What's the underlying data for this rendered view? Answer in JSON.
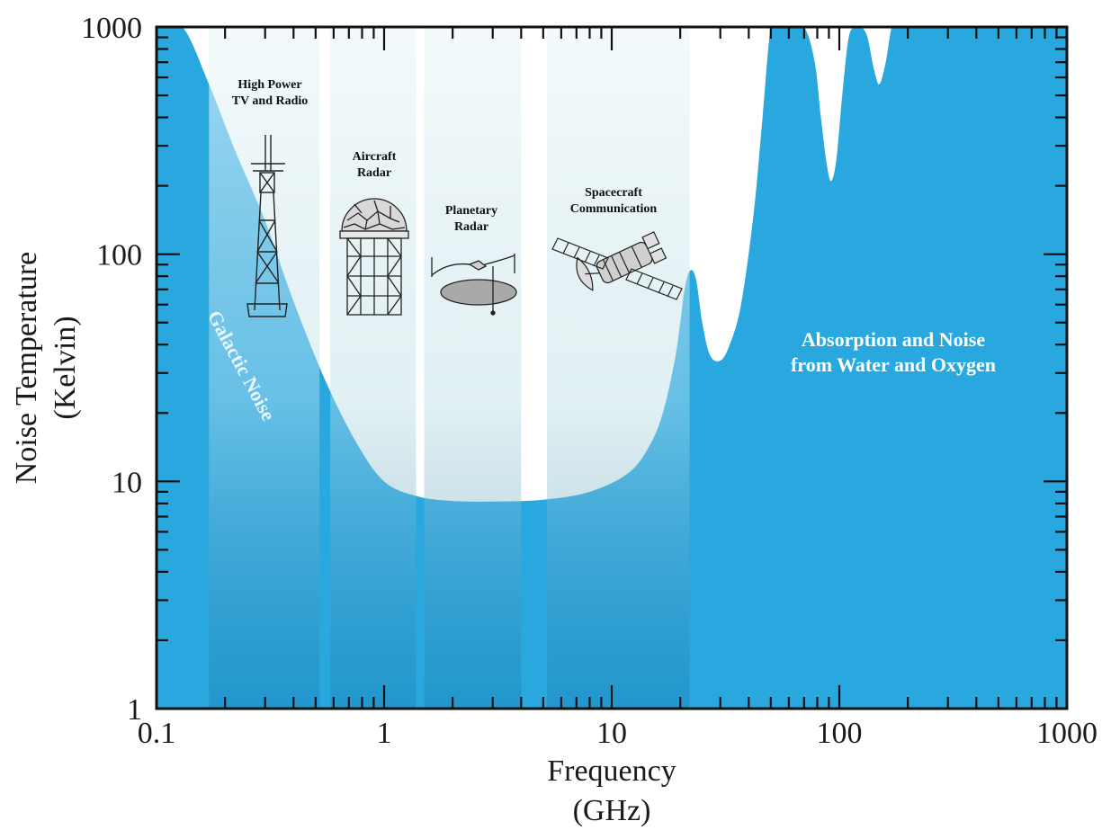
{
  "chart_data": {
    "type": "area",
    "title": "",
    "xlabel_line1": "Frequency",
    "xlabel_line2": "(GHz)",
    "ylabel_line1": "Noise Temperature",
    "ylabel_line2": "(Kelvin)",
    "x_scale": "log",
    "y_scale": "log",
    "xlim": [
      0.1,
      1000
    ],
    "ylim": [
      1,
      1000
    ],
    "x_ticks": [
      {
        "value": 0.1,
        "label": "0.1"
      },
      {
        "value": 1,
        "label": "1"
      },
      {
        "value": 10,
        "label": "10"
      },
      {
        "value": 100,
        "label": "100"
      },
      {
        "value": 1000,
        "label": "1000"
      }
    ],
    "y_ticks": [
      {
        "value": 1,
        "label": "1"
      },
      {
        "value": 10,
        "label": "10"
      },
      {
        "value": 100,
        "label": "100"
      },
      {
        "value": 1000,
        "label": "1000"
      }
    ],
    "noise_curve": {
      "color": "#29a8e0",
      "x": [
        0.1,
        0.13,
        0.17,
        0.22,
        0.3,
        0.4,
        0.55,
        0.75,
        1.0,
        1.4,
        2.0,
        3.0,
        5.0,
        8.0,
        12.0,
        15.0,
        17.0,
        19.0,
        20.0,
        21.0,
        22.2,
        23.5,
        25.0,
        27.0,
        30.0,
        33.0,
        37.0,
        42.0,
        46.0,
        50.0,
        54.0,
        60.0,
        70.0,
        78.0,
        83.0,
        88.0,
        92.0,
        97.0,
        103.0,
        110.0,
        118.0,
        125.0,
        133.0,
        142.0,
        150.0,
        160.0,
        170.0,
        180.0,
        190.0,
        1000.0
      ],
      "y": [
        1000,
        1000,
        560,
        290,
        140,
        62,
        28,
        15,
        10,
        8.6,
        8.2,
        8.15,
        8.3,
        9.0,
        11.0,
        15.0,
        21.0,
        35.0,
        50.0,
        72.0,
        85.0,
        77.0,
        50.0,
        36.0,
        34.0,
        40.0,
        60.0,
        150.0,
        400.0,
        1000.0,
        1000.0,
        1000.0,
        1000.0,
        700.0,
        400.0,
        250.0,
        210.0,
        260.0,
        500.0,
        900.0,
        1000.0,
        1000.0,
        900.0,
        650.0,
        560.0,
        700.0,
        1000.0,
        1000.0,
        1000.0,
        1000.0
      ]
    },
    "bands": [
      {
        "name": "High Power TV and Radio",
        "line1": "High Power",
        "line2": "TV and Radio",
        "x_range": [
          0.17,
          0.52
        ]
      },
      {
        "name": "Aircraft Radar",
        "line1": "Aircraft",
        "line2": "Radar",
        "x_range": [
          0.58,
          1.38
        ]
      },
      {
        "name": "Planetary Radar",
        "line1": "Planetary",
        "line2": "Radar",
        "x_range": [
          1.5,
          4.0
        ]
      },
      {
        "name": "Spacecraft Communication",
        "line1": "Spacecraft",
        "line2": "Communication",
        "x_range": [
          5.2,
          22.0
        ]
      }
    ],
    "annotations": [
      {
        "id": "galactic",
        "text": "Galactic Noise"
      },
      {
        "id": "absorption",
        "line1": "Absorption and Noise",
        "line2": "from Water and Oxygen"
      }
    ],
    "icons": [
      "radio-tower-icon",
      "radar-dome-icon",
      "planetary-radar-dish-icon",
      "spacecraft-icon"
    ],
    "grid": false,
    "legend": "none"
  }
}
